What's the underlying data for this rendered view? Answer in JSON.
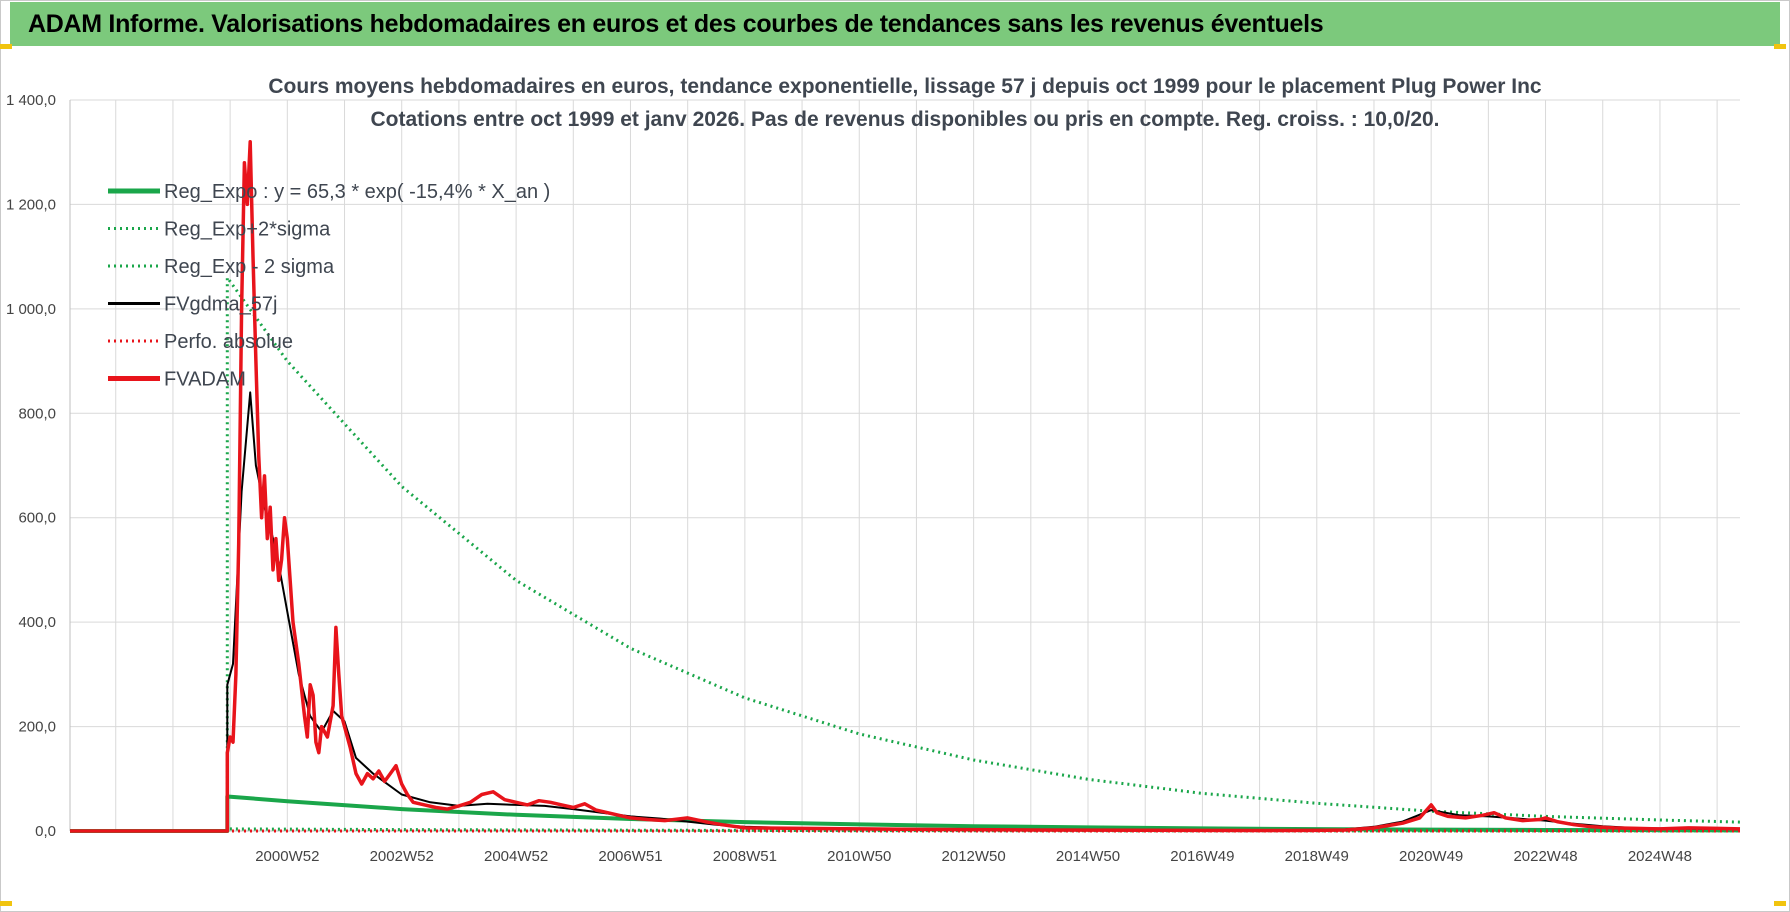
{
  "header": {
    "title": "ADAM Informe. Valorisations hebdomadaires en euros et des courbes de tendances sans les revenus éventuels"
  },
  "colors": {
    "header_bg": "#7cc97c",
    "green": "#1aa64a",
    "black": "#000000",
    "red": "#e8141b",
    "grid": "#d9d9d9"
  },
  "chart_data": {
    "type": "line",
    "title_lines": [
      "Cours moyens hebdomadaires en euros, tendance exponentielle, lissage 57 j depuis oct 1999 pour le placement Plug Power Inc",
      "Cotations entre oct 1999 et janv 2026. Pas de revenus disponibles ou pris en compte. Reg. croiss. : 10,0/20."
    ],
    "ylim": [
      0,
      1400
    ],
    "y_ticks": [
      "0,0",
      "200,0",
      "400,0",
      "600,0",
      "800,0",
      "1 000,0",
      "1 200,0",
      "1 400,0"
    ],
    "x_range": [
      1997.2,
      2026.4
    ],
    "x_ticks": [
      {
        "label": "2000W52",
        "x": 2001.0
      },
      {
        "label": "2002W52",
        "x": 2003.0
      },
      {
        "label": "2004W52",
        "x": 2005.0
      },
      {
        "label": "2006W51",
        "x": 2007.0
      },
      {
        "label": "2008W51",
        "x": 2009.0
      },
      {
        "label": "2010W50",
        "x": 2011.0
      },
      {
        "label": "2012W50",
        "x": 2013.0
      },
      {
        "label": "2014W50",
        "x": 2015.0
      },
      {
        "label": "2016W49",
        "x": 2017.0
      },
      {
        "label": "2018W49",
        "x": 2019.0
      },
      {
        "label": "2020W49",
        "x": 2021.0
      },
      {
        "label": "2022W48",
        "x": 2023.0
      },
      {
        "label": "2024W48",
        "x": 2025.0
      }
    ],
    "series": [
      {
        "name": "Reg_Expo : y = 65,3 * exp( -15,4% *  X_an )",
        "style": "solid-thick",
        "color": "#1aa64a",
        "points": [
          [
            1997.2,
            0
          ],
          [
            1999.95,
            0
          ],
          [
            1999.95,
            66
          ],
          [
            2001,
            57
          ],
          [
            2003,
            42
          ],
          [
            2005,
            31
          ],
          [
            2007,
            23
          ],
          [
            2009,
            17
          ],
          [
            2011,
            12.6
          ],
          [
            2013,
            9.2
          ],
          [
            2015,
            6.8
          ],
          [
            2017,
            5
          ],
          [
            2019,
            3.7
          ],
          [
            2021,
            2.7
          ],
          [
            2023,
            2
          ],
          [
            2025,
            1.5
          ],
          [
            2026.4,
            1.2
          ]
        ]
      },
      {
        "name": "Reg_Exp+2*sigma",
        "style": "dotted",
        "color": "#1aa64a",
        "points": [
          [
            1997.2,
            0
          ],
          [
            1999.95,
            0
          ],
          [
            1999.95,
            1060
          ],
          [
            2001,
            900
          ],
          [
            2003,
            660
          ],
          [
            2005,
            480
          ],
          [
            2007,
            350
          ],
          [
            2009,
            255
          ],
          [
            2011,
            186
          ],
          [
            2013,
            136
          ],
          [
            2015,
            99
          ],
          [
            2017,
            72
          ],
          [
            2019,
            53
          ],
          [
            2021,
            38
          ],
          [
            2023,
            28
          ],
          [
            2025,
            21
          ],
          [
            2026.4,
            17
          ]
        ]
      },
      {
        "name": "Reg_Exp - 2 sigma",
        "style": "dotted",
        "color": "#1aa64a",
        "points": [
          [
            1997.2,
            0
          ],
          [
            1999.95,
            0
          ],
          [
            1999.95,
            4
          ],
          [
            2003,
            2.6
          ],
          [
            2007,
            1.5
          ],
          [
            2011,
            0.8
          ],
          [
            2015,
            0.4
          ],
          [
            2019,
            0.2
          ],
          [
            2026.4,
            0.1
          ]
        ]
      },
      {
        "name": "FVgdma_57j",
        "style": "solid",
        "color": "#000000",
        "points": [
          [
            1997.2,
            0
          ],
          [
            1999.95,
            0
          ],
          [
            1999.95,
            280
          ],
          [
            2000.05,
            320
          ],
          [
            2000.2,
            650
          ],
          [
            2000.35,
            840
          ],
          [
            2000.45,
            700
          ],
          [
            2000.6,
            620
          ],
          [
            2000.8,
            540
          ],
          [
            2001.0,
            420
          ],
          [
            2001.2,
            300
          ],
          [
            2001.4,
            220
          ],
          [
            2001.6,
            190
          ],
          [
            2001.8,
            230
          ],
          [
            2002.0,
            210
          ],
          [
            2002.2,
            140
          ],
          [
            2002.5,
            110
          ],
          [
            2003.0,
            70
          ],
          [
            2003.5,
            55
          ],
          [
            2004.0,
            48
          ],
          [
            2004.5,
            52
          ],
          [
            2005.0,
            50
          ],
          [
            2005.5,
            48
          ],
          [
            2006.0,
            42
          ],
          [
            2006.5,
            35
          ],
          [
            2007.0,
            28
          ],
          [
            2007.5,
            24
          ],
          [
            2008.0,
            18
          ],
          [
            2008.5,
            12
          ],
          [
            2009.0,
            8
          ],
          [
            2010.0,
            5
          ],
          [
            2012.0,
            3
          ],
          [
            2014.0,
            2
          ],
          [
            2016.0,
            1.5
          ],
          [
            2018.0,
            1.5
          ],
          [
            2019.5,
            3
          ],
          [
            2020.0,
            8
          ],
          [
            2020.5,
            18
          ],
          [
            2021.0,
            40
          ],
          [
            2021.5,
            30
          ],
          [
            2022.0,
            28
          ],
          [
            2022.5,
            24
          ],
          [
            2023.0,
            20
          ],
          [
            2023.5,
            14
          ],
          [
            2024.0,
            9
          ],
          [
            2024.5,
            6
          ],
          [
            2025.0,
            5
          ],
          [
            2026.0,
            4
          ],
          [
            2026.4,
            4
          ]
        ]
      },
      {
        "name": "Perfo. absolue",
        "style": "dotted",
        "color": "#e8141b",
        "points": [
          [
            1997.2,
            0
          ],
          [
            2026.4,
            0
          ]
        ]
      },
      {
        "name": "FVADAM",
        "style": "solid-thick",
        "color": "#e8141b",
        "points": [
          [
            1997.2,
            0
          ],
          [
            1999.95,
            0
          ],
          [
            1999.95,
            150
          ],
          [
            2000.0,
            180
          ],
          [
            2000.05,
            170
          ],
          [
            2000.1,
            300
          ],
          [
            2000.15,
            550
          ],
          [
            2000.2,
            1000
          ],
          [
            2000.25,
            1280
          ],
          [
            2000.3,
            1200
          ],
          [
            2000.35,
            1320
          ],
          [
            2000.4,
            1100
          ],
          [
            2000.45,
            900
          ],
          [
            2000.5,
            720
          ],
          [
            2000.55,
            600
          ],
          [
            2000.6,
            680
          ],
          [
            2000.65,
            560
          ],
          [
            2000.7,
            620
          ],
          [
            2000.75,
            500
          ],
          [
            2000.8,
            560
          ],
          [
            2000.85,
            480
          ],
          [
            2000.9,
            520
          ],
          [
            2000.95,
            600
          ],
          [
            2001.0,
            560
          ],
          [
            2001.1,
            400
          ],
          [
            2001.2,
            320
          ],
          [
            2001.3,
            220
          ],
          [
            2001.35,
            180
          ],
          [
            2001.4,
            280
          ],
          [
            2001.45,
            260
          ],
          [
            2001.5,
            170
          ],
          [
            2001.55,
            150
          ],
          [
            2001.6,
            200
          ],
          [
            2001.7,
            180
          ],
          [
            2001.8,
            240
          ],
          [
            2001.85,
            390
          ],
          [
            2001.9,
            300
          ],
          [
            2001.95,
            220
          ],
          [
            2002.0,
            200
          ],
          [
            2002.1,
            160
          ],
          [
            2002.2,
            110
          ],
          [
            2002.3,
            90
          ],
          [
            2002.4,
            110
          ],
          [
            2002.5,
            100
          ],
          [
            2002.6,
            115
          ],
          [
            2002.7,
            95
          ],
          [
            2002.8,
            110
          ],
          [
            2002.9,
            125
          ],
          [
            2003.0,
            90
          ],
          [
            2003.1,
            70
          ],
          [
            2003.2,
            55
          ],
          [
            2003.4,
            50
          ],
          [
            2003.6,
            45
          ],
          [
            2003.8,
            42
          ],
          [
            2004.0,
            48
          ],
          [
            2004.2,
            55
          ],
          [
            2004.4,
            70
          ],
          [
            2004.6,
            75
          ],
          [
            2004.8,
            60
          ],
          [
            2005.0,
            55
          ],
          [
            2005.2,
            50
          ],
          [
            2005.4,
            58
          ],
          [
            2005.6,
            55
          ],
          [
            2005.8,
            50
          ],
          [
            2006.0,
            45
          ],
          [
            2006.2,
            52
          ],
          [
            2006.4,
            40
          ],
          [
            2006.6,
            35
          ],
          [
            2006.8,
            30
          ],
          [
            2007.0,
            25
          ],
          [
            2007.3,
            22
          ],
          [
            2007.6,
            20
          ],
          [
            2008.0,
            25
          ],
          [
            2008.3,
            18
          ],
          [
            2008.6,
            12
          ],
          [
            2009.0,
            6
          ],
          [
            2010.0,
            5
          ],
          [
            2012.0,
            3
          ],
          [
            2014.0,
            2
          ],
          [
            2016.0,
            1.5
          ],
          [
            2018.0,
            1
          ],
          [
            2019.0,
            1.2
          ],
          [
            2019.5,
            2
          ],
          [
            2020.0,
            6
          ],
          [
            2020.5,
            15
          ],
          [
            2020.8,
            25
          ],
          [
            2021.0,
            50
          ],
          [
            2021.1,
            35
          ],
          [
            2021.3,
            28
          ],
          [
            2021.6,
            25
          ],
          [
            2021.9,
            30
          ],
          [
            2022.1,
            35
          ],
          [
            2022.3,
            25
          ],
          [
            2022.6,
            20
          ],
          [
            2022.9,
            22
          ],
          [
            2023.0,
            25
          ],
          [
            2023.2,
            18
          ],
          [
            2023.5,
            12
          ],
          [
            2023.8,
            8
          ],
          [
            2024.2,
            6
          ],
          [
            2024.6,
            5
          ],
          [
            2025.0,
            4
          ],
          [
            2025.5,
            6
          ],
          [
            2026.0,
            5
          ],
          [
            2026.4,
            4
          ]
        ]
      }
    ]
  }
}
